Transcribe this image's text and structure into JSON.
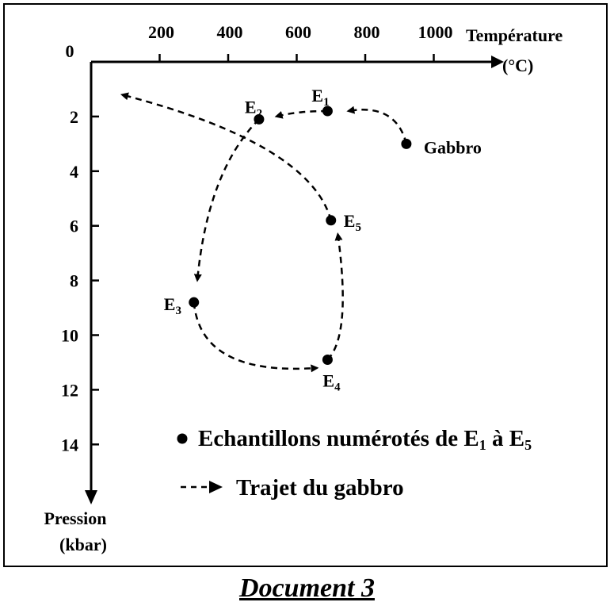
{
  "chart_data": {
    "type": "line",
    "title": "",
    "x_axis": {
      "label_line1": "Température",
      "label_line2": "(°C)",
      "range": [
        0,
        1200
      ],
      "origin_label": "0",
      "ticks": [
        200,
        400,
        600,
        800,
        1000
      ],
      "position": "top"
    },
    "y_axis": {
      "label_line1": "Pression",
      "label_line2": "(kbar)",
      "range": [
        0,
        16
      ],
      "inverted": true,
      "ticks": [
        2,
        4,
        6,
        8,
        10,
        12,
        14
      ]
    },
    "samples": [
      {
        "id": "E1",
        "label_main": "E",
        "label_sub": "1",
        "x": 690,
        "y": 1.8
      },
      {
        "id": "E2",
        "label_main": "E",
        "label_sub": "2",
        "x": 490,
        "y": 2.1
      },
      {
        "id": "E3",
        "label_main": "E",
        "label_sub": "3",
        "x": 300,
        "y": 8.8
      },
      {
        "id": "E4",
        "label_main": "E",
        "label_sub": "4",
        "x": 690,
        "y": 10.9
      },
      {
        "id": "E5",
        "label_main": "E",
        "label_sub": "5",
        "x": 700,
        "y": 5.8
      },
      {
        "id": "Gabbro",
        "label_main": "Gabbro",
        "label_sub": "",
        "x": 920,
        "y": 3.0
      }
    ],
    "path": {
      "name": "Trajet du gabbro",
      "segments": [
        {
          "from": "Gabbro",
          "to": "E1",
          "points": [
            [
              920,
              3.0
            ],
            [
              890,
              1.5
            ],
            [
              750,
              1.8
            ]
          ]
        },
        {
          "from": "E1",
          "to": "E2",
          "points": [
            [
              690,
              1.8
            ],
            [
              600,
              1.8
            ],
            [
              540,
              2.0
            ]
          ]
        },
        {
          "from": "E2",
          "to": "E3",
          "points": [
            [
              490,
              2.1
            ],
            [
              340,
              4.0
            ],
            [
              310,
              8.0
            ]
          ]
        },
        {
          "from": "E3",
          "to": "E4",
          "points": [
            [
              300,
              8.8
            ],
            [
              320,
              11.5
            ],
            [
              660,
              11.2
            ]
          ]
        },
        {
          "from": "E4",
          "to": "E5",
          "points": [
            [
              690,
              10.9
            ],
            [
              760,
              10.0
            ],
            [
              720,
              6.3
            ]
          ]
        },
        {
          "from": "E5",
          "to": "end",
          "points": [
            [
              700,
              5.8
            ],
            [
              640,
              3.0
            ],
            [
              90,
              1.2
            ]
          ]
        }
      ]
    },
    "legend": {
      "placement": "bottom-right",
      "samples_text": "Echantillons numérotés de E",
      "samples_sub1": "1",
      "samples_mid": " à E",
      "samples_sub2": "5",
      "path_text": "Trajet du gabbro"
    }
  },
  "document_title": "Document 3"
}
